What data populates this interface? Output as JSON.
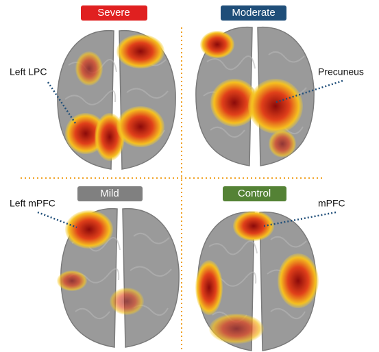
{
  "panels": [
    {
      "label": "Severe",
      "annotation": "Left LPC"
    },
    {
      "label": "Moderate",
      "annotation": "Precuneus"
    },
    {
      "label": "Mild",
      "annotation": "Left mPFC"
    },
    {
      "label": "Control",
      "annotation": "mPFC"
    }
  ]
}
